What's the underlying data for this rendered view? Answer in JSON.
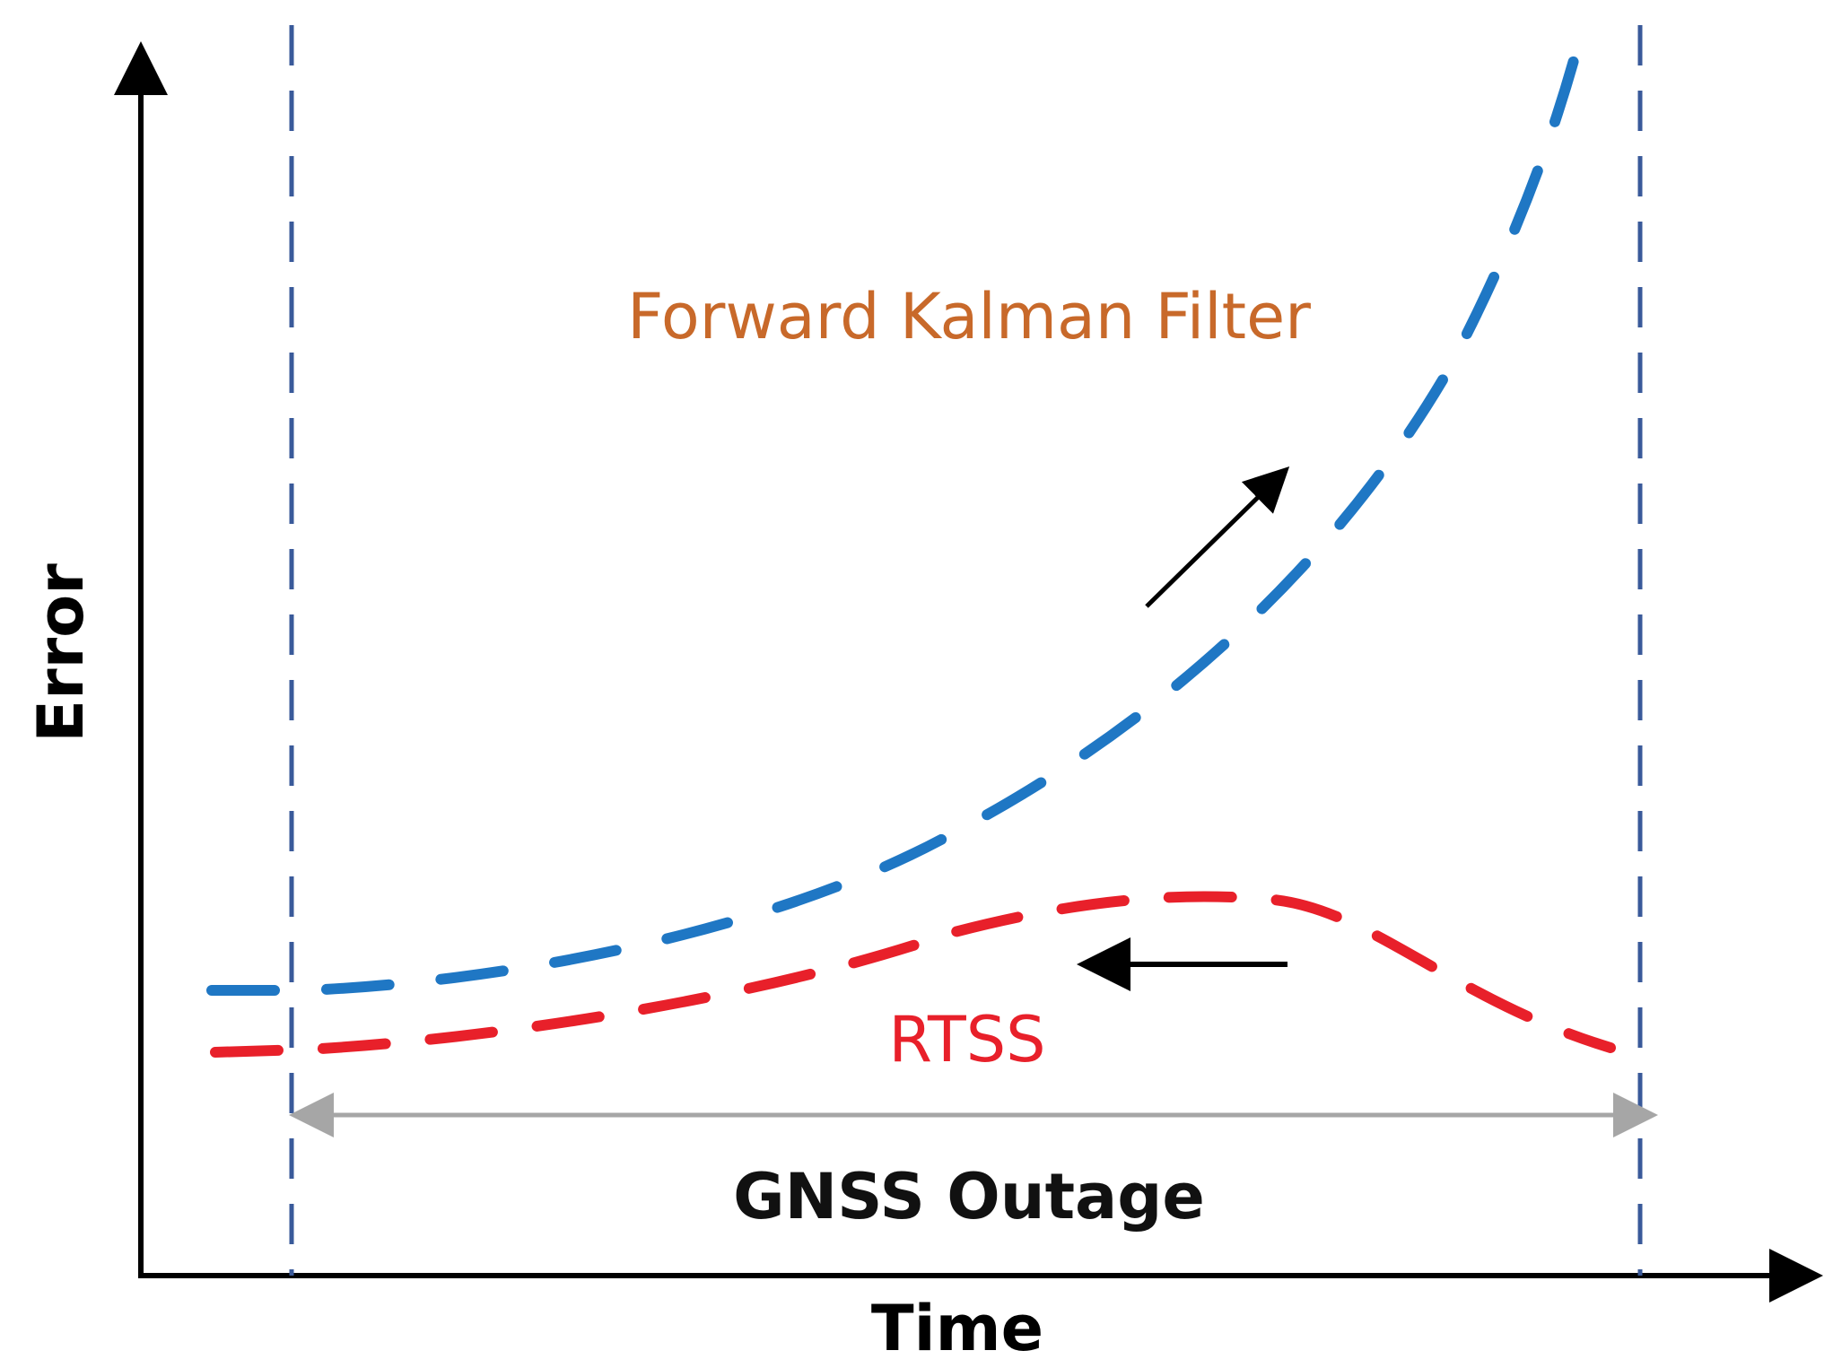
{
  "diagram": {
    "labels": {
      "y_axis": "Error",
      "x_axis": "Time",
      "forward_kalman_filter": "Forward Kalman Filter",
      "rtss": "RTSS",
      "gnss_outage": "GNSS Outage"
    },
    "colors": {
      "forward_kalman_filter_curve": "#1f77c4",
      "rtss_curve": "#e8202a",
      "forward_kalman_filter_label": "#c8692a",
      "rtss_label": "#e8202a",
      "outage_boundaries": "#3a5a9a",
      "outage_span_arrow": "#a6a6a6",
      "direction_arrows": "#000000",
      "axes": "#000000"
    },
    "direction_arrows": {
      "forward_kalman_filter": "up-right",
      "rtss": "left"
    }
  }
}
